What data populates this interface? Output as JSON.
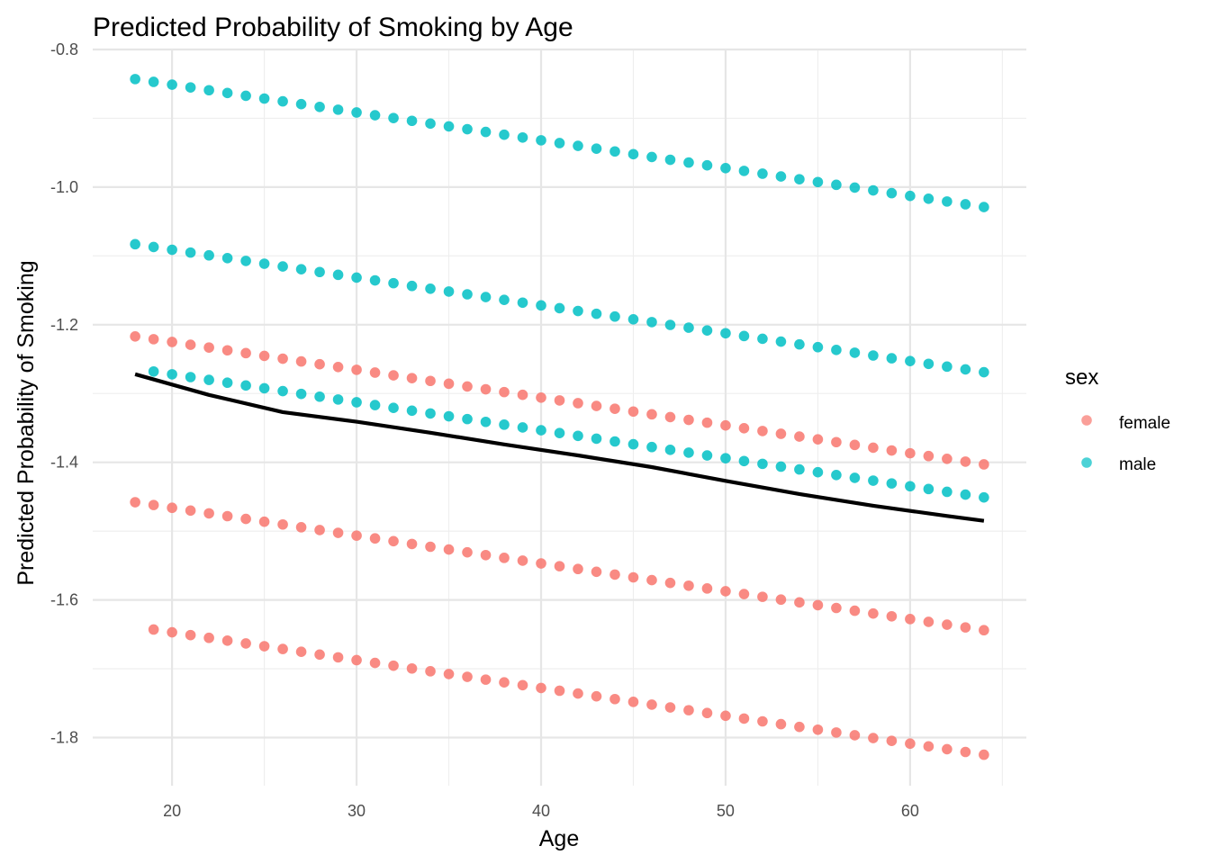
{
  "chart_data": {
    "type": "scatter",
    "title": "Predicted Probability of Smoking by Age",
    "xlabel": "Age",
    "ylabel": "Predicted Probability of Smoking",
    "xlim": [
      15.7,
      66.3
    ],
    "ylim": [
      -1.87,
      -0.8
    ],
    "x_ticks": [
      20,
      30,
      40,
      50,
      60
    ],
    "y_ticks": [
      -1.8,
      -1.6,
      -1.4,
      -1.2,
      -1.0,
      -0.8
    ],
    "x_tick_labels": [
      "20",
      "30",
      "40",
      "50",
      "60"
    ],
    "y_tick_labels": [
      "-1.8",
      "-1.6",
      "-1.4",
      "-1.2",
      "-1.0",
      "-0.8"
    ],
    "grid": true,
    "legend": {
      "title": "sex",
      "position": "right",
      "entries": [
        {
          "label": "female",
          "color": "#f8766d"
        },
        {
          "label": "male",
          "color": "#00bfc4"
        }
      ]
    },
    "x_range": [
      18,
      64
    ],
    "series": [
      {
        "group": "female",
        "color": "#f8766d",
        "age_start": 18,
        "age_end": 64,
        "y_start": -1.217,
        "y_end": -1.403
      },
      {
        "group": "female",
        "color": "#f8766d",
        "age_start": 18,
        "age_end": 64,
        "y_start": -1.458,
        "y_end": -1.644
      },
      {
        "group": "female",
        "color": "#f8766d",
        "age_start": 19,
        "age_end": 64,
        "y_start": -1.643,
        "y_end": -1.825
      },
      {
        "group": "male",
        "color": "#00bfc4",
        "age_start": 18,
        "age_end": 64,
        "y_start": -0.843,
        "y_end": -1.029
      },
      {
        "group": "male",
        "color": "#00bfc4",
        "age_start": 18,
        "age_end": 64,
        "y_start": -1.083,
        "y_end": -1.269
      },
      {
        "group": "male",
        "color": "#00bfc4",
        "age_start": 19,
        "age_end": 64,
        "y_start": -1.268,
        "y_end": -1.451
      }
    ],
    "smooth_line": {
      "color": "#000000",
      "x": [
        18,
        22,
        26,
        30,
        34,
        38,
        42,
        46,
        50,
        54,
        58,
        62,
        64
      ],
      "y": [
        -1.272,
        -1.302,
        -1.327,
        -1.341,
        -1.357,
        -1.374,
        -1.39,
        -1.407,
        -1.427,
        -1.446,
        -1.463,
        -1.478,
        -1.485
      ]
    }
  }
}
